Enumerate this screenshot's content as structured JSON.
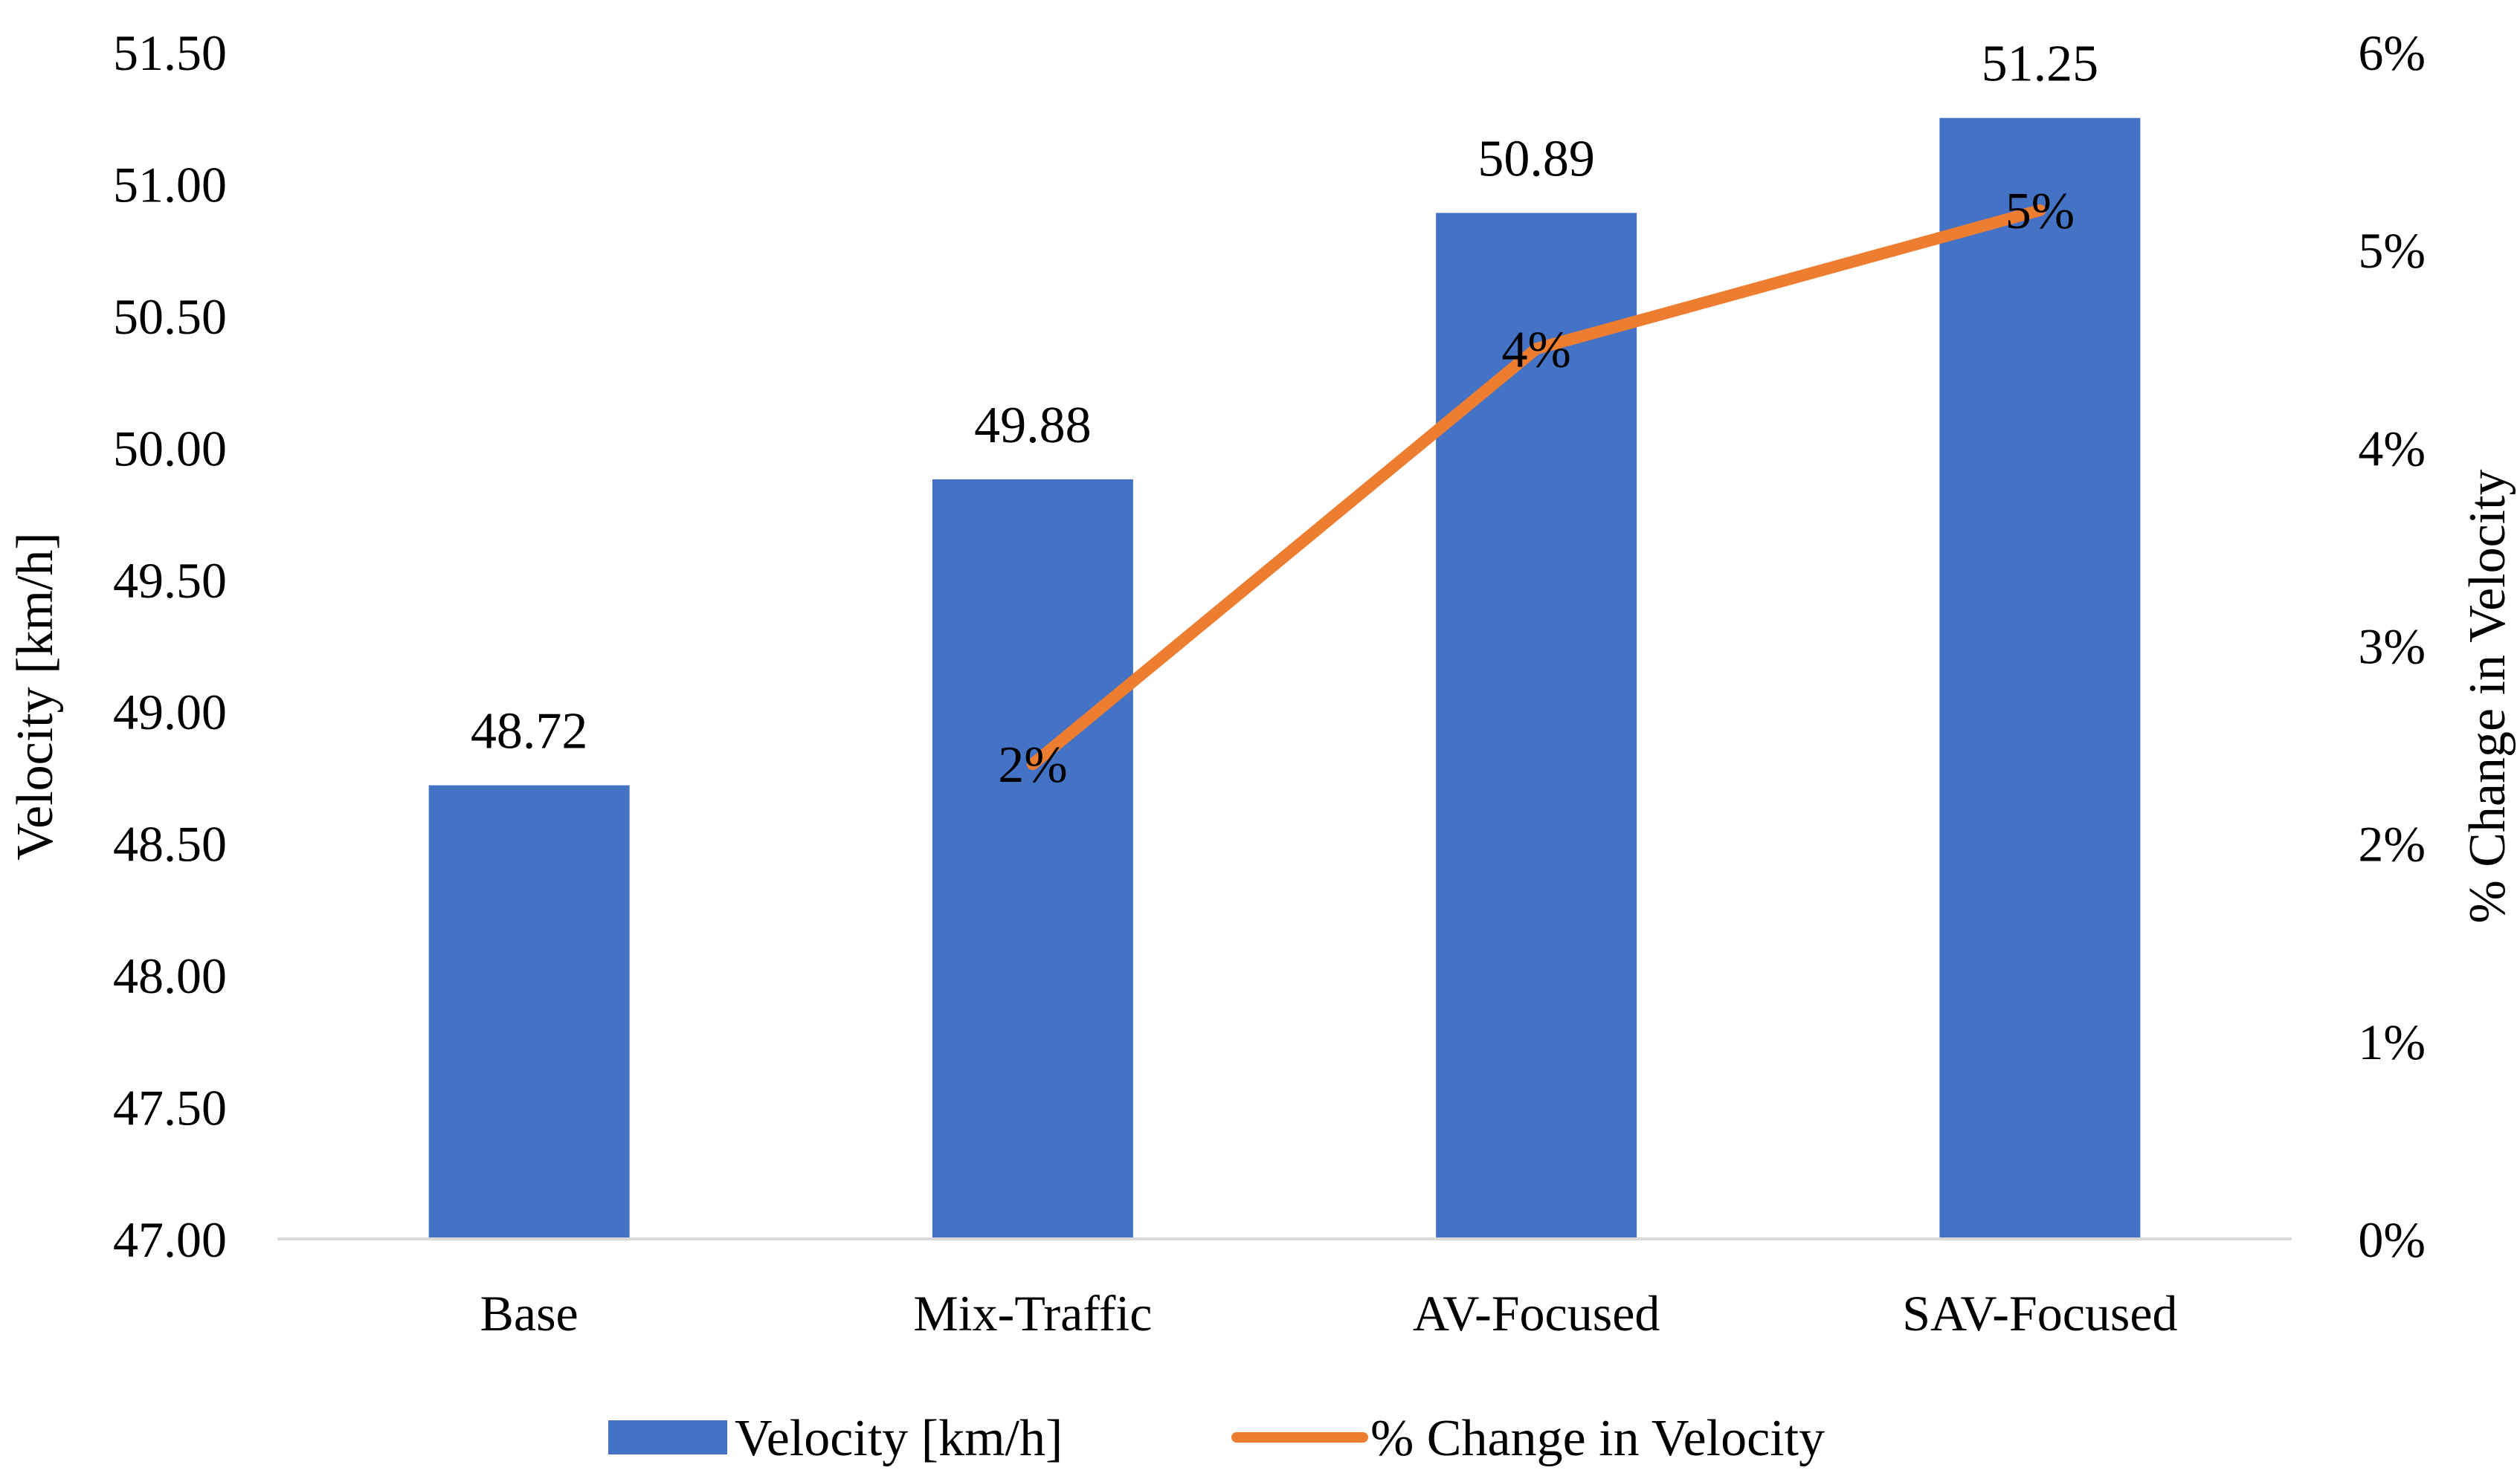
{
  "chart_data": {
    "type": "bar+line",
    "categories": [
      "Base",
      "Mix-Traffic",
      "AV-Focused",
      "SAV-Focused"
    ],
    "series": [
      {
        "name": "Velocity [km/h]",
        "type": "bar",
        "axis": "left",
        "color": "#4472C4",
        "values": [
          48.72,
          49.88,
          50.89,
          51.25
        ],
        "labels": [
          "48.72",
          "49.88",
          "50.89",
          "51.25"
        ]
      },
      {
        "name": "% Change in Velocity",
        "type": "line",
        "axis": "right",
        "color": "#ED7D31",
        "values": [
          null,
          2.4,
          4.5,
          5.2
        ],
        "labels": [
          "",
          "2%",
          "4%",
          "5%"
        ]
      }
    ],
    "y_left": {
      "label": "Velocity [km/h]",
      "ylim": [
        47.0,
        51.5
      ],
      "ticks": [
        "47.00",
        "47.50",
        "48.00",
        "48.50",
        "49.00",
        "49.50",
        "50.00",
        "50.50",
        "51.00",
        "51.50"
      ]
    },
    "y_right": {
      "label": "% Change in Velocity",
      "ylim": [
        0,
        6
      ],
      "ticks": [
        "0%",
        "1%",
        "2%",
        "3%",
        "4%",
        "5%",
        "6%"
      ]
    },
    "legend": {
      "position": "bottom",
      "items": [
        "Velocity [km/h]",
        "% Change in Velocity"
      ]
    },
    "grid": false
  }
}
